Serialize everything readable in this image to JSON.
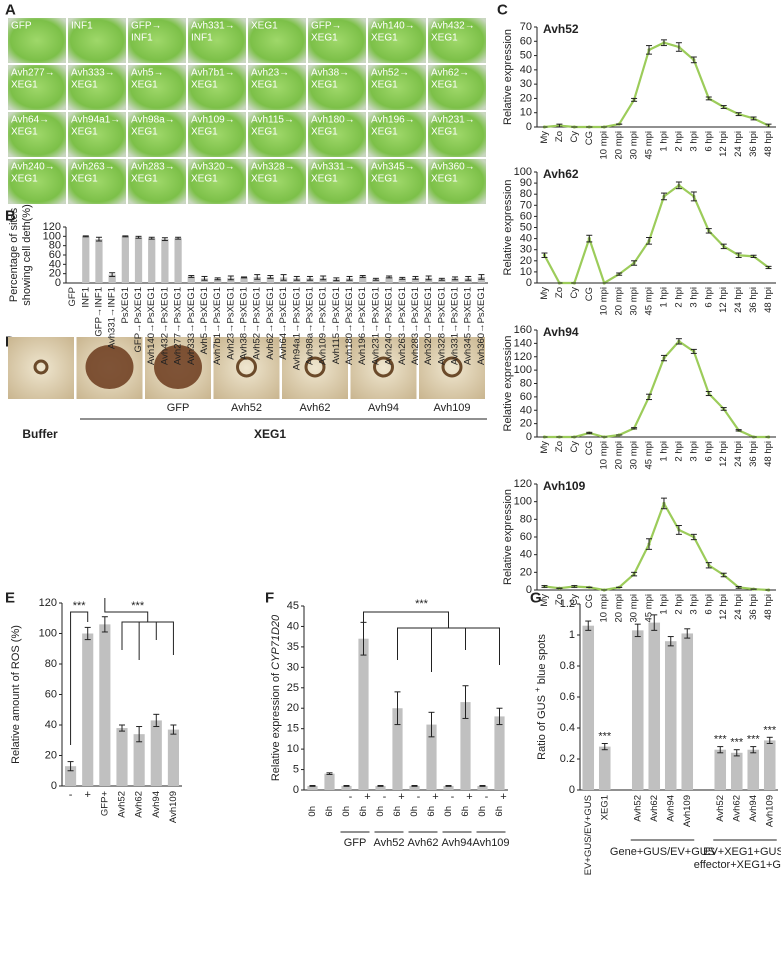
{
  "panels": [
    "A",
    "B",
    "C",
    "D",
    "E",
    "F",
    "G"
  ],
  "panel_a": {
    "labels": [
      [
        "GFP"
      ],
      [
        "INF1"
      ],
      [
        "GFP→",
        "INF1"
      ],
      [
        "Avh331→",
        "INF1"
      ],
      [
        "XEG1"
      ],
      [
        "GFP→",
        "XEG1"
      ],
      [
        "Avh140→",
        "XEG1"
      ],
      [
        "Avh432→",
        "XEG1"
      ],
      [
        "Avh277→",
        "XEG1"
      ],
      [
        "Avh333→",
        "XEG1"
      ],
      [
        "Avh5→",
        "XEG1"
      ],
      [
        "Avh7b1→",
        "XEG1"
      ],
      [
        "Avh23→",
        "XEG1"
      ],
      [
        "Avh38→",
        "XEG1"
      ],
      [
        "Avh52→",
        "XEG1"
      ],
      [
        "Avh62→",
        "XEG1"
      ],
      [
        "Avh64→",
        "XEG1"
      ],
      [
        "Avh94a1→",
        "XEG1"
      ],
      [
        "Avh98a→",
        "XEG1"
      ],
      [
        "Avh109→",
        "XEG1"
      ],
      [
        "Avh115→",
        "XEG1"
      ],
      [
        "Avh180→",
        "XEG1"
      ],
      [
        "Avh196→",
        "XEG1"
      ],
      [
        "Avh231→",
        "XEG1"
      ],
      [
        "Avh240→",
        "XEG1"
      ],
      [
        "Avh263→",
        "XEG1"
      ],
      [
        "Avh283→",
        "XEG1"
      ],
      [
        "Avh320→",
        "XEG1"
      ],
      [
        "Avh328→",
        "XEG1"
      ],
      [
        "Avh331→",
        "XEG1"
      ],
      [
        "Avh345→",
        "XEG1"
      ],
      [
        "Avh360→",
        "XEG1"
      ]
    ]
  },
  "panel_d": {
    "labels": [
      "GFP",
      "Avh52",
      "Avh62",
      "Avh94",
      "Avh109"
    ],
    "buffer": "Buffer",
    "treatment": "XEG1"
  },
  "chart_data": [
    {
      "type": "bar",
      "ylabel": [
        "Percentage of sites",
        "showing cell deth(%)"
      ],
      "color": "#c0c0c0",
      "categories": [
        "GFP",
        "INF1",
        "GFP→INF1",
        "Avh331→INF1",
        "PsXEG1",
        "GFP→PsXEG1",
        "Avh140→PsXEG1",
        "Avh432→PsXEG1",
        "Avh277→PsXEG1",
        "Avh333→PsXEG1",
        "Avh5→PsXEG1",
        "Avh7b1→PsXEG1",
        "Avh23→PsXEG1",
        "Avh38→PsXEG1",
        "Avh52→PsXEG1",
        "Avh62→PsXEG1",
        "Avh64→PsXEG1",
        "Avh94a1→PsXEG1",
        "Avh98a→PsXEG1",
        "Avh109→PsXEG1",
        "Avh115→PsXEG1",
        "Avh180→PsXEG1",
        "Avh196→PsXEG1",
        "Avh231→PsXEG1",
        "Avh240→PsXEG1",
        "Avh263→PsXEG1",
        "Avh283→PsXEG1",
        "Avh320→PsXEG1",
        "Avh328→PsXEG1",
        "Avh331→PsXEG1",
        "Avh345→PsXEG1",
        "Avh360→PsXEG1"
      ],
      "values": [
        0,
        100,
        94,
        18,
        100,
        98,
        96,
        94,
        96,
        14,
        10,
        9,
        11,
        12,
        13,
        13,
        12,
        10,
        10,
        11,
        8,
        10,
        14,
        8,
        13,
        10,
        11,
        11,
        8,
        10,
        10,
        13
      ],
      "errors": [
        0,
        1,
        4,
        4,
        1,
        2,
        2,
        3,
        2,
        2,
        4,
        2,
        4,
        1,
        5,
        3,
        6,
        4,
        4,
        4,
        3,
        4,
        2,
        2,
        2,
        2,
        3,
        4,
        2,
        3,
        4,
        5
      ],
      "ylim": [
        0,
        120
      ],
      "yticks": [
        0,
        20,
        40,
        60,
        80,
        100,
        120
      ]
    },
    {
      "type": "line",
      "title": "Avh52",
      "ylabel": "Relative expression",
      "color": "#9ccc5a",
      "categories": [
        "My",
        "Zo",
        "Cy",
        "CG",
        "10 mpi",
        "20 mpi",
        "30 mpi",
        "45 mpi",
        "1 hpi",
        "2 hpi",
        "3 hpi",
        "6 hpi",
        "12 hpi",
        "24 hpi",
        "36 hpi",
        "48 hpi"
      ],
      "values": [
        0,
        1,
        0,
        0,
        0,
        2,
        19,
        54,
        59,
        56,
        47,
        20,
        14,
        9,
        6,
        1
      ],
      "errors": [
        0,
        1,
        0,
        0,
        0,
        0,
        1,
        3,
        2,
        3,
        2,
        1,
        1,
        1,
        1,
        1
      ],
      "ylim": [
        0,
        70
      ],
      "yticks": [
        0,
        10,
        20,
        30,
        40,
        50,
        60,
        70
      ]
    },
    {
      "type": "line",
      "title": "Avh62",
      "ylabel": "Relative expression",
      "color": "#9ccc5a",
      "categories": [
        "My",
        "Zo",
        "Cy",
        "CG",
        "10 mpi",
        "20 mpi",
        "30 mpi",
        "45 mpi",
        "1 hpi",
        "2 hpi",
        "3 hpi",
        "6 hpi",
        "12 hpi",
        "24 hpi",
        "36 hpi",
        "48 hpi"
      ],
      "values": [
        25,
        0,
        0,
        40,
        0,
        8,
        18,
        38,
        78,
        88,
        78,
        47,
        33,
        25,
        24,
        14
      ],
      "errors": [
        2,
        0,
        0,
        3,
        0,
        1,
        2,
        3,
        3,
        3,
        4,
        2,
        2,
        2,
        1,
        1
      ],
      "ylim": [
        0,
        100
      ],
      "yticks": [
        0,
        10,
        20,
        30,
        40,
        50,
        60,
        70,
        80,
        90,
        100
      ]
    },
    {
      "type": "line",
      "title": "Avh94",
      "ylabel": "Relative expression",
      "color": "#9ccc5a",
      "categories": [
        "My",
        "Zo",
        "Cy",
        "CG",
        "10 mpi",
        "20 mpi",
        "30 mpi",
        "45 mpi",
        "1 hpi",
        "2 hpi",
        "3 hpi",
        "6 hpi",
        "12 hpi",
        "24 hpi",
        "36 hpi",
        "48 hpi"
      ],
      "values": [
        0,
        0,
        0,
        6,
        0,
        3,
        13,
        60,
        118,
        143,
        128,
        65,
        42,
        10,
        0,
        0
      ],
      "errors": [
        0,
        0,
        0,
        1,
        0,
        0,
        1,
        4,
        4,
        4,
        3,
        3,
        2,
        1,
        0,
        0
      ],
      "ylim": [
        0,
        160
      ],
      "yticks": [
        0,
        20,
        40,
        60,
        80,
        100,
        120,
        140,
        160
      ]
    },
    {
      "type": "line",
      "title": "Avh109",
      "ylabel": "Relative expression",
      "color": "#9ccc5a",
      "categories": [
        "My",
        "Zo",
        "Cy",
        "CG",
        "10 mpi",
        "20 mpi",
        "30 mpi",
        "45 mpi",
        "1 hpi",
        "2 hpi",
        "3 hpi",
        "6 hpi",
        "12 hpi",
        "24 hpi",
        "36 hpi",
        "48 hpi"
      ],
      "values": [
        4,
        2,
        4,
        3,
        0,
        3,
        18,
        52,
        98,
        68,
        60,
        28,
        17,
        3,
        1,
        0
      ],
      "errors": [
        1,
        0,
        1,
        0,
        0,
        0,
        2,
        6,
        6,
        5,
        3,
        3,
        2,
        1,
        0,
        0
      ],
      "ylim": [
        0,
        120
      ],
      "yticks": [
        0,
        20,
        40,
        60,
        80,
        100,
        120
      ]
    },
    {
      "type": "bar",
      "ylabel": "Relative amount of ROS (%)",
      "color": "#c0c0c0",
      "categories": [
        "-",
        "+",
        "GFP+",
        "Avh52",
        "Avh62",
        "Avh94",
        "Avh109"
      ],
      "values": [
        13,
        100,
        106,
        38,
        34,
        43,
        37
      ],
      "errors": [
        3,
        4,
        5,
        2,
        5,
        4,
        3
      ],
      "ylim": [
        0,
        120
      ],
      "yticks": [
        0,
        20,
        40,
        60,
        80,
        100,
        120
      ],
      "annotations": [
        "***",
        "***"
      ]
    },
    {
      "type": "bar",
      "ylabel": [
        "Relative expression of ",
        "CYP71D20"
      ],
      "color": "#c0c0c0",
      "categories": [
        "0h",
        "6h",
        "0h",
        "6h",
        "0h",
        "6h",
        "0h",
        "6h",
        "0h",
        "6h",
        "0h",
        "6h"
      ],
      "signs": [
        null,
        null,
        "-",
        "+",
        "-",
        "+",
        "-",
        "+",
        "-",
        "+",
        "-",
        "+"
      ],
      "groups": [
        null,
        "GFP",
        "Avh52",
        "Avh62",
        "Avh94",
        "Avh109"
      ],
      "values": [
        1,
        4,
        1,
        37,
        1,
        20,
        1,
        16,
        1,
        21.5,
        1,
        18
      ],
      "errors": [
        0.1,
        0.2,
        0.1,
        4,
        0.1,
        4,
        0.1,
        3,
        0.1,
        4,
        0.1,
        2
      ],
      "ylim": [
        0,
        45
      ],
      "yticks": [
        0,
        5,
        10,
        15,
        20,
        25,
        30,
        35,
        40,
        45
      ],
      "annotations": [
        "***"
      ]
    },
    {
      "type": "bar",
      "ylabel": [
        "Ratio of GUS ",
        "+",
        " blue spots"
      ],
      "color": "#c0c0c0",
      "categories": [
        "EV+GUS/EV+GUS",
        "XEG1",
        null,
        "Avh52",
        "Avh62",
        "Avh94",
        "Avh109",
        null,
        "Avh52",
        "Avh62",
        "Avh94",
        "Avh109"
      ],
      "values": [
        1.06,
        0.28,
        null,
        1.03,
        1.08,
        0.96,
        1.01,
        null,
        0.26,
        0.24,
        0.26,
        0.32
      ],
      "errors": [
        0.03,
        0.02,
        null,
        0.04,
        0.05,
        0.03,
        0.03,
        null,
        0.02,
        0.02,
        0.02,
        0.02
      ],
      "group_labels": [
        [
          "Gene+GUS/EV+GUS"
        ],
        [
          "EV+XEG1+GUS/",
          "effector+XEG1+GUS"
        ]
      ],
      "ylim": [
        0,
        1.2
      ],
      "yticks": [
        0,
        0.2,
        0.4,
        0.6,
        0.8,
        1,
        1.2
      ],
      "annotations": [
        "***",
        "***",
        "***",
        "***",
        "***"
      ]
    }
  ]
}
